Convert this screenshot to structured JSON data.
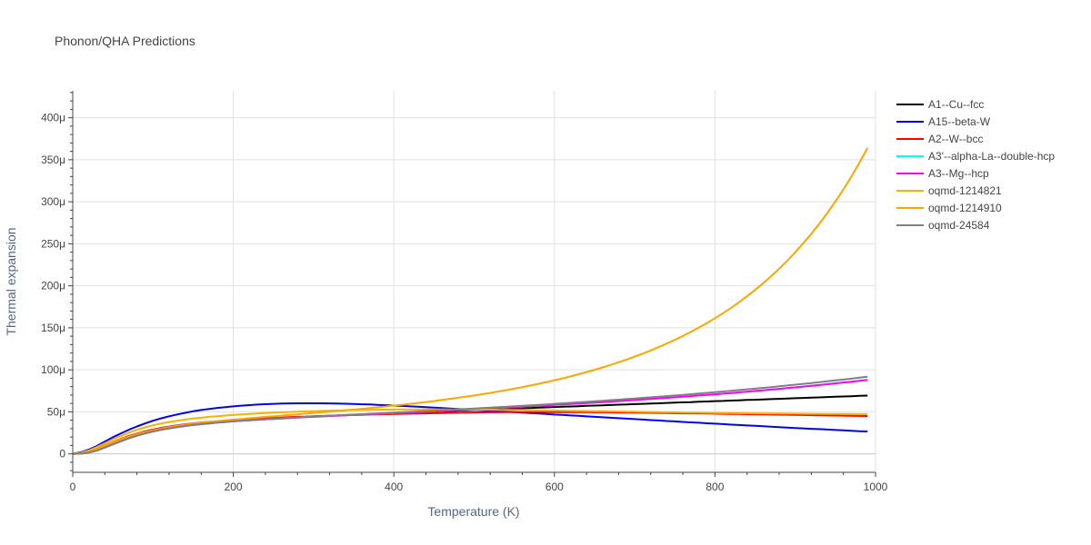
{
  "chart_data": {
    "type": "line",
    "title": "Phonon/QHA Predictions",
    "xlabel": "Temperature (K)",
    "ylabel": "Thermal expansion",
    "xlim": [
      0,
      1000
    ],
    "ylim": [
      -22,
      432
    ],
    "xticks": [
      0,
      200,
      400,
      600,
      800,
      1000
    ],
    "xtick_labels": [
      "0",
      "200",
      "400",
      "600",
      "800",
      "1000"
    ],
    "yticks": [
      0,
      50,
      100,
      150,
      200,
      250,
      300,
      350,
      400
    ],
    "ytick_labels": [
      "0",
      "50μ",
      "100μ",
      "150μ",
      "200μ",
      "250μ",
      "300μ",
      "350μ",
      "400μ"
    ],
    "grid": true,
    "legend_position": "right",
    "x": [
      0,
      10,
      20,
      30,
      40,
      50,
      60,
      70,
      80,
      90,
      100,
      110,
      120,
      130,
      140,
      150,
      160,
      170,
      180,
      190,
      200,
      210,
      220,
      230,
      240,
      250,
      260,
      270,
      280,
      290,
      300,
      310,
      320,
      330,
      340,
      350,
      360,
      370,
      380,
      390,
      400,
      410,
      420,
      430,
      440,
      450,
      460,
      470,
      480,
      490,
      500,
      510,
      520,
      530,
      540,
      550,
      560,
      570,
      580,
      590,
      600,
      610,
      620,
      630,
      640,
      650,
      660,
      670,
      680,
      690,
      700,
      710,
      720,
      730,
      740,
      750,
      760,
      770,
      780,
      790,
      800,
      810,
      820,
      830,
      840,
      850,
      860,
      870,
      880,
      890,
      900,
      910,
      920,
      930,
      940,
      950,
      960,
      970,
      980,
      990
    ],
    "series": [
      {
        "name": "A1--Cu--fcc",
        "color": "#000000",
        "values": [
          0,
          0.3,
          1.6,
          4.2,
          7.8,
          11.7,
          15.5,
          19.1,
          22.3,
          25.1,
          27.4,
          29.4,
          31.1,
          32.6,
          33.9,
          35.0,
          36.1,
          37.0,
          37.8,
          38.6,
          39.3,
          39.9,
          40.5,
          41.1,
          41.6,
          42.1,
          42.6,
          43.1,
          43.6,
          44.0,
          44.5,
          44.9,
          45.3,
          45.7,
          46.1,
          46.5,
          46.9,
          47.3,
          47.6,
          48.0,
          48.4,
          48.8,
          49.1,
          49.5,
          49.9,
          50.3,
          50.6,
          51.0,
          51.4,
          51.7,
          52.1,
          52.4,
          52.8,
          53.2,
          53.5,
          53.9,
          54.2,
          54.6,
          55.0,
          55.3,
          55.7,
          56.0,
          56.4,
          56.7,
          57.1,
          57.4,
          57.8,
          58.1,
          58.5,
          58.8,
          59.2,
          59.5,
          59.9,
          60.2,
          60.6,
          60.9,
          61.3,
          61.6,
          62.0,
          62.3,
          62.7,
          63.0,
          63.4,
          63.7,
          64.1,
          64.4,
          64.8,
          65.1,
          65.5,
          65.8,
          66.2,
          66.5,
          66.9,
          67.2,
          67.6,
          67.9,
          68.3,
          68.6,
          69.0,
          69.3
        ]
      },
      {
        "name": "A15--beta-W",
        "color": "#0000ff",
        "values": [
          0,
          1.9,
          5.0,
          9.4,
          14.6,
          19.7,
          24.4,
          28.7,
          32.6,
          36.2,
          39.4,
          42.2,
          44.7,
          46.9,
          48.8,
          50.6,
          52.1,
          53.4,
          54.6,
          55.6,
          56.5,
          57.3,
          58.0,
          58.6,
          59.1,
          59.5,
          59.8,
          60.0,
          60.2,
          60.2,
          60.2,
          60.1,
          60.0,
          59.8,
          59.6,
          59.3,
          59.0,
          58.7,
          58.3,
          57.9,
          57.5,
          57.0,
          56.5,
          56.0,
          55.5,
          55.0,
          54.5,
          54.0,
          53.4,
          52.9,
          52.3,
          51.8,
          51.2,
          50.7,
          50.1,
          49.6,
          49.0,
          48.5,
          47.9,
          47.4,
          46.8,
          46.3,
          45.7,
          45.2,
          44.6,
          44.1,
          43.5,
          43.0,
          42.4,
          41.9,
          41.3,
          40.8,
          40.2,
          39.7,
          39.1,
          38.6,
          38.0,
          37.5,
          37.0,
          36.4,
          35.9,
          35.4,
          34.8,
          34.3,
          33.8,
          33.3,
          32.8,
          32.3,
          31.8,
          31.3,
          30.8,
          30.3,
          29.8,
          29.4,
          28.9,
          28.4,
          27.9,
          27.5,
          27.0,
          26.6
        ]
      },
      {
        "name": "A2--W--bcc",
        "color": "#ff0000",
        "values": [
          0,
          0.8,
          2.8,
          6.1,
          10.0,
          14.0,
          17.8,
          21.2,
          24.2,
          26.8,
          29.0,
          30.9,
          32.5,
          33.9,
          35.2,
          36.3,
          37.3,
          38.1,
          38.9,
          39.6,
          40.3,
          40.9,
          41.4,
          41.9,
          42.4,
          42.8,
          43.2,
          43.6,
          44.0,
          44.3,
          44.7,
          45.0,
          45.3,
          45.6,
          45.9,
          46.2,
          46.4,
          46.7,
          46.9,
          47.2,
          47.4,
          47.6,
          47.8,
          48.0,
          48.2,
          48.4,
          48.6,
          48.8,
          48.9,
          49.1,
          49.2,
          49.3,
          49.4,
          49.5,
          49.6,
          49.6,
          49.7,
          49.7,
          49.7,
          49.7,
          49.7,
          49.7,
          49.7,
          49.6,
          49.6,
          49.5,
          49.4,
          49.3,
          49.2,
          49.1,
          49.0,
          48.9,
          48.8,
          48.7,
          48.6,
          48.4,
          48.3,
          48.2,
          48.1,
          47.9,
          47.8,
          47.6,
          47.5,
          47.4,
          47.2,
          47.1,
          46.9,
          46.8,
          46.6,
          46.5,
          46.3,
          46.2,
          46.0,
          45.9,
          45.7,
          45.6,
          45.4,
          45.3,
          45.1,
          45.0
        ]
      },
      {
        "name": "A3'--alpha-La--double-hcp",
        "color": "#00ffff",
        "values": [
          0,
          0.3,
          1.5,
          4.0,
          7.5,
          11.3,
          15.0,
          18.5,
          21.6,
          24.3,
          26.6,
          28.6,
          30.3,
          31.8,
          33.1,
          34.3,
          35.3,
          36.2,
          37.1,
          37.9,
          38.6,
          39.3,
          39.9,
          40.5,
          41.1,
          41.6,
          42.1,
          42.6,
          43.1,
          43.6,
          44.1,
          44.5,
          45.0,
          45.4,
          45.9,
          46.3,
          46.8,
          47.2,
          47.6,
          48.1,
          48.5,
          49.0,
          49.4,
          49.9,
          50.3,
          50.8,
          51.2,
          51.7,
          52.2,
          52.6,
          53.1,
          53.6,
          54.1,
          54.6,
          55.1,
          55.6,
          56.1,
          56.6,
          57.1,
          57.7,
          58.2,
          58.7,
          59.3,
          59.9,
          60.4,
          61.0,
          61.6,
          62.2,
          62.8,
          63.4,
          64.0,
          64.7,
          65.3,
          66.0,
          66.6,
          67.3,
          68.0,
          68.7,
          69.4,
          70.1,
          70.9,
          71.6,
          72.4,
          73.2,
          74.0,
          74.8,
          75.6,
          76.5,
          77.3,
          78.2,
          79.1,
          80.0,
          81.0,
          81.9,
          82.9,
          83.9,
          84.9,
          85.9,
          87.0,
          88.0
        ]
      },
      {
        "name": "A3--Mg--hcp",
        "color": "#ff00ff",
        "values": [
          0,
          0.3,
          1.5,
          4.0,
          7.5,
          11.3,
          15.0,
          18.5,
          21.6,
          24.3,
          26.6,
          28.6,
          30.3,
          31.8,
          33.1,
          34.3,
          35.3,
          36.2,
          37.1,
          37.9,
          38.6,
          39.3,
          39.9,
          40.5,
          41.1,
          41.6,
          42.1,
          42.6,
          43.1,
          43.6,
          44.1,
          44.5,
          45.0,
          45.4,
          45.9,
          46.3,
          46.8,
          47.2,
          47.6,
          48.1,
          48.5,
          49.0,
          49.4,
          49.9,
          50.3,
          50.8,
          51.2,
          51.7,
          52.2,
          52.6,
          53.1,
          53.6,
          54.1,
          54.6,
          55.1,
          55.6,
          56.1,
          56.6,
          57.1,
          57.7,
          58.2,
          58.7,
          59.3,
          59.9,
          60.4,
          61.0,
          61.6,
          62.2,
          62.8,
          63.4,
          64.0,
          64.7,
          65.3,
          66.0,
          66.6,
          67.3,
          68.0,
          68.7,
          69.4,
          70.1,
          70.9,
          71.6,
          72.4,
          73.2,
          74.0,
          74.8,
          75.6,
          76.5,
          77.3,
          78.2,
          79.1,
          80.0,
          81.0,
          81.9,
          82.9,
          83.9,
          84.9,
          85.9,
          87.0,
          88.0
        ]
      },
      {
        "name": "oqmd-1214821",
        "color": "#f0b400",
        "values": [
          0,
          1.2,
          4.0,
          8.0,
          12.6,
          17.2,
          21.4,
          25.2,
          28.6,
          31.5,
          34.0,
          36.1,
          37.9,
          39.4,
          40.8,
          42.0,
          43.0,
          44.0,
          44.8,
          45.6,
          46.3,
          46.9,
          47.5,
          48.0,
          48.5,
          49.0,
          49.4,
          49.8,
          50.2,
          50.5,
          50.8,
          51.1,
          51.4,
          51.6,
          51.8,
          52.0,
          52.2,
          52.4,
          52.5,
          52.6,
          52.7,
          52.8,
          52.8,
          52.9,
          52.9,
          52.9,
          52.9,
          52.9,
          52.8,
          52.8,
          52.7,
          52.6,
          52.5,
          52.4,
          52.3,
          52.2,
          52.1,
          52.0,
          51.9,
          51.7,
          51.6,
          51.4,
          51.3,
          51.1,
          51.0,
          50.8,
          50.7,
          50.5,
          50.4,
          50.2,
          50.1,
          49.9,
          49.8,
          49.6,
          49.5,
          49.4,
          49.2,
          49.1,
          49.0,
          48.8,
          48.7,
          48.6,
          48.5,
          48.4,
          48.3,
          48.2,
          48.1,
          48.0,
          47.9,
          47.8,
          47.8,
          47.7,
          47.6,
          47.6,
          47.5,
          47.5,
          47.4,
          47.4,
          47.3,
          47.3
        ]
      },
      {
        "name": "oqmd-1214910",
        "color": "#ffa500",
        "values": [
          0,
          0.6,
          2.6,
          5.8,
          9.7,
          13.6,
          17.3,
          20.6,
          23.5,
          26.0,
          28.2,
          30.1,
          31.8,
          33.3,
          34.6,
          35.9,
          37.0,
          38.0,
          39.0,
          39.9,
          40.8,
          41.6,
          42.4,
          43.2,
          44.0,
          44.8,
          45.5,
          46.3,
          47.1,
          47.8,
          48.6,
          49.4,
          50.2,
          51.0,
          51.9,
          52.7,
          53.6,
          54.5,
          55.4,
          56.4,
          57.4,
          58.4,
          59.5,
          60.6,
          61.7,
          62.9,
          64.1,
          65.4,
          66.7,
          68.1,
          69.5,
          71.0,
          72.5,
          74.2,
          75.8,
          77.6,
          79.4,
          81.3,
          83.3,
          85.4,
          87.6,
          89.8,
          92.2,
          94.7,
          97.3,
          100.0,
          102.9,
          105.9,
          109.0,
          112.3,
          115.7,
          119.3,
          123.1,
          127.1,
          131.3,
          135.7,
          140.3,
          145.2,
          150.3,
          155.7,
          161.4,
          167.4,
          173.8,
          180.5,
          187.6,
          195.1,
          203.1,
          211.5,
          220.4,
          229.9,
          239.9,
          250.6,
          261.9,
          273.9,
          286.7,
          300.3,
          314.7,
          330.1,
          346.5,
          364.0
        ]
      },
      {
        "name": "oqmd-24584",
        "color": "#808080",
        "values": [
          0,
          0.3,
          1.5,
          4.0,
          7.5,
          11.4,
          15.1,
          18.6,
          21.7,
          24.4,
          26.7,
          28.7,
          30.4,
          31.9,
          33.2,
          34.4,
          35.4,
          36.4,
          37.2,
          38.0,
          38.8,
          39.5,
          40.1,
          40.7,
          41.3,
          41.9,
          42.4,
          42.9,
          43.4,
          43.9,
          44.4,
          44.9,
          45.4,
          45.8,
          46.3,
          46.8,
          47.2,
          47.7,
          48.2,
          48.6,
          49.1,
          49.6,
          50.0,
          50.5,
          51.0,
          51.5,
          52.0,
          52.5,
          53.0,
          53.5,
          54.0,
          54.5,
          55.0,
          55.6,
          56.1,
          56.7,
          57.2,
          57.8,
          58.3,
          58.9,
          59.5,
          60.1,
          60.7,
          61.3,
          61.9,
          62.6,
          63.2,
          63.9,
          64.5,
          65.2,
          65.9,
          66.6,
          67.3,
          68.0,
          68.7,
          69.5,
          70.2,
          71.0,
          71.8,
          72.6,
          73.4,
          74.2,
          75.0,
          75.9,
          76.8,
          77.6,
          78.5,
          79.4,
          80.4,
          81.3,
          82.3,
          83.3,
          84.3,
          85.3,
          86.3,
          87.4,
          88.4,
          89.5,
          90.6,
          91.7
        ]
      }
    ]
  }
}
